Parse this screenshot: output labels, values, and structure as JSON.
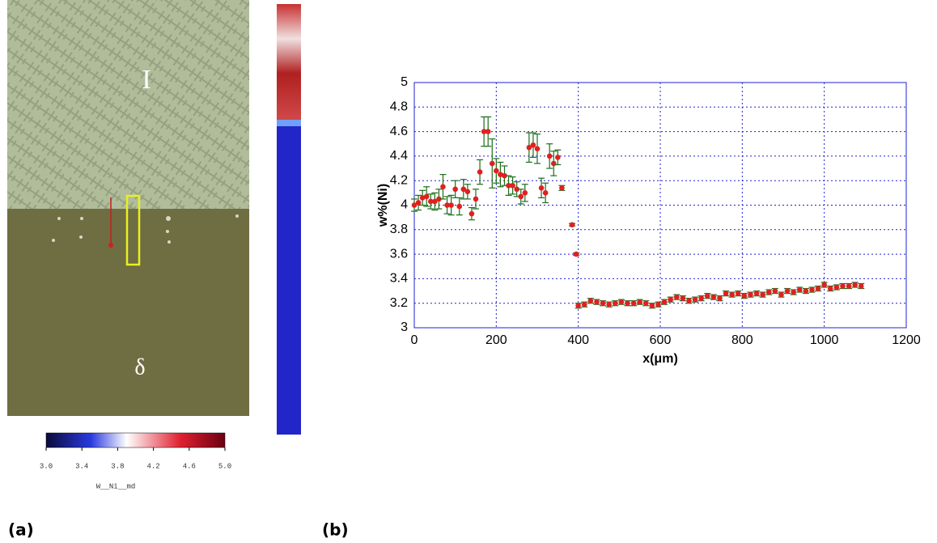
{
  "micrograph": {
    "phase_labels": [
      "I",
      "δ"
    ],
    "colorbar": {
      "ticks": [
        {
          "value": 3,
          "label": "3.0"
        },
        {
          "value": 3.4,
          "label": "3.4"
        },
        {
          "value": 3.8,
          "label": "3.8"
        },
        {
          "value": 4.2,
          "label": "4.2"
        },
        {
          "value": 4.6,
          "label": "4.6"
        },
        {
          "value": 5,
          "label": "5.0"
        }
      ],
      "lim": [
        3,
        5
      ],
      "label": "W__Ni__md"
    }
  },
  "panel_labels": [
    "(a)",
    "(b)"
  ],
  "chart_data": {
    "type": "scatter",
    "xlabel": "x(μm)",
    "ylabel": "w%(Ni)",
    "xlim": [
      0,
      1200
    ],
    "xticks": [
      0,
      200,
      400,
      600,
      800,
      1000,
      1200
    ],
    "ylim": [
      3,
      5
    ],
    "yticks": [
      3,
      3.2,
      3.4,
      3.6,
      3.8,
      4,
      4.2,
      4.4,
      4.6,
      4.8,
      5
    ],
    "grid": true,
    "color": "#e02020",
    "error_color": "#1a6e1a",
    "x": [
      0,
      10,
      20,
      30,
      40,
      50,
      60,
      70,
      80,
      90,
      100,
      110,
      120,
      130,
      140,
      150,
      160,
      170,
      180,
      190,
      200,
      210,
      220,
      230,
      240,
      250,
      260,
      270,
      280,
      290,
      300,
      310,
      320,
      330,
      340,
      350,
      360,
      385,
      395,
      400,
      415,
      430,
      445,
      460,
      475,
      490,
      505,
      520,
      535,
      550,
      565,
      580,
      595,
      610,
      625,
      640,
      655,
      670,
      685,
      700,
      715,
      730,
      745,
      760,
      775,
      790,
      805,
      820,
      835,
      850,
      865,
      880,
      895,
      910,
      925,
      940,
      955,
      970,
      985,
      1000,
      1015,
      1030,
      1045,
      1060,
      1075,
      1090
    ],
    "values": [
      4.0,
      4.02,
      4.06,
      4.07,
      4.03,
      4.03,
      4.05,
      4.15,
      4.0,
      4.0,
      4.13,
      3.99,
      4.13,
      4.11,
      3.93,
      4.05,
      4.27,
      4.6,
      4.6,
      4.34,
      4.28,
      4.25,
      4.24,
      4.16,
      4.16,
      4.13,
      4.07,
      4.1,
      4.47,
      4.49,
      4.46,
      4.14,
      4.1,
      4.4,
      4.34,
      4.39,
      4.14,
      3.84,
      3.6,
      3.18,
      3.19,
      3.22,
      3.21,
      3.2,
      3.19,
      3.2,
      3.21,
      3.2,
      3.2,
      3.21,
      3.2,
      3.18,
      3.19,
      3.21,
      3.23,
      3.25,
      3.24,
      3.22,
      3.23,
      3.24,
      3.26,
      3.25,
      3.24,
      3.28,
      3.27,
      3.28,
      3.26,
      3.27,
      3.28,
      3.27,
      3.29,
      3.3,
      3.27,
      3.3,
      3.29,
      3.31,
      3.3,
      3.31,
      3.32,
      3.35,
      3.32,
      3.33,
      3.34,
      3.34,
      3.35,
      3.34
    ],
    "errors": [
      0.05,
      0.06,
      0.06,
      0.08,
      0.06,
      0.07,
      0.08,
      0.1,
      0.07,
      0.08,
      0.07,
      0.07,
      0.08,
      0.06,
      0.05,
      0.08,
      0.1,
      0.12,
      0.12,
      0.2,
      0.1,
      0.1,
      0.08,
      0.08,
      0.07,
      0.06,
      0.06,
      0.07,
      0.12,
      0.1,
      0.12,
      0.08,
      0.08,
      0.1,
      0.1,
      0.06,
      0.02,
      0.01,
      0.01,
      0.02,
      0.02,
      0.02,
      0.02,
      0.02,
      0.02,
      0.02,
      0.02,
      0.02,
      0.02,
      0.02,
      0.02,
      0.02,
      0.02,
      0.02,
      0.02,
      0.02,
      0.02,
      0.02,
      0.02,
      0.02,
      0.02,
      0.02,
      0.02,
      0.02,
      0.02,
      0.02,
      0.02,
      0.02,
      0.02,
      0.02,
      0.02,
      0.02,
      0.02,
      0.02,
      0.02,
      0.02,
      0.02,
      0.02,
      0.02,
      0.02,
      0.02,
      0.02,
      0.02,
      0.02,
      0.02,
      0.02
    ]
  }
}
